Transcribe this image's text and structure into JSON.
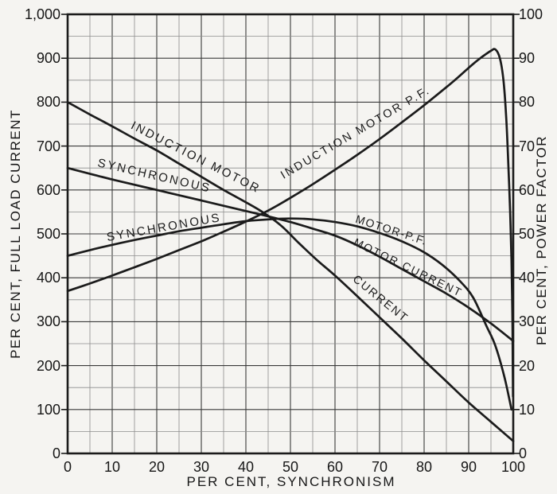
{
  "axes": {
    "x": {
      "title": "PER CENT, SYNCHRONISM",
      "ticks": [
        "0",
        "10",
        "20",
        "30",
        "40",
        "50",
        "60",
        "70",
        "80",
        "90",
        "100"
      ]
    },
    "left": {
      "title": "PER CENT, FULL LOAD CURRENT",
      "ticks": [
        "1,000",
        "900",
        "800",
        "700",
        "600",
        "500",
        "400",
        "300",
        "200",
        "100",
        "0"
      ]
    },
    "right": {
      "title": "PER CENT, POWER FACTOR",
      "ticks": [
        "100",
        "90",
        "80",
        "70",
        "60",
        "50",
        "40",
        "30",
        "20",
        "10",
        "0"
      ]
    }
  },
  "curve_labels": {
    "induction_motor": "INDUCTION MOTOR",
    "synchronous_upper": "SYNCHRONOUS",
    "synchronous_lower": "SYNCHRONOUS",
    "induction_motor_pf": "INDUCTION MOTOR P.F.",
    "motor_pf": "MOTOR-P.F.",
    "motor_current": "MOTOR CURRENT",
    "current": "CURRENT"
  },
  "chart_data": {
    "type": "line",
    "title": "",
    "x_axis": {
      "label": "PER CENT, SYNCHRONISM",
      "range": [
        0,
        100
      ],
      "major": 10,
      "minor": 5
    },
    "y_axis_left": {
      "label": "PER CENT, FULL LOAD CURRENT",
      "range": [
        0,
        1000
      ],
      "major": 100,
      "minor": 50
    },
    "y_axis_right": {
      "label": "PER CENT, POWER FACTOR",
      "range": [
        0,
        100
      ],
      "major": 10,
      "minor": 5
    },
    "grid": true,
    "legend": "labels drawn along curves",
    "ink_color": "#1b1b1b",
    "paper_color": "#f5f4f1",
    "series": [
      {
        "name": "induction_motor_current",
        "label_on_chart": "INDUCTION MOTOR ... CURRENT",
        "axis": "left",
        "points": [
          [
            0,
            800
          ],
          [
            5,
            772
          ],
          [
            10,
            745
          ],
          [
            15,
            717
          ],
          [
            20,
            690
          ],
          [
            25,
            660
          ],
          [
            30,
            630
          ],
          [
            35,
            600
          ],
          [
            40,
            572
          ],
          [
            44,
            548
          ],
          [
            48,
            518
          ],
          [
            52,
            478
          ],
          [
            56,
            440
          ],
          [
            60,
            405
          ],
          [
            65,
            358
          ],
          [
            70,
            310
          ],
          [
            75,
            262
          ],
          [
            80,
            212
          ],
          [
            85,
            164
          ],
          [
            90,
            116
          ],
          [
            95,
            72
          ],
          [
            100,
            28
          ]
        ]
      },
      {
        "name": "synchronous_motor_current",
        "label_on_chart": "SYNCHRONOUS ... MOTOR CURRENT",
        "axis": "left",
        "points": [
          [
            0,
            650
          ],
          [
            10,
            624
          ],
          [
            20,
            600
          ],
          [
            30,
            576
          ],
          [
            40,
            552
          ],
          [
            45,
            540
          ],
          [
            50,
            527
          ],
          [
            55,
            512
          ],
          [
            60,
            496
          ],
          [
            65,
            474
          ],
          [
            70,
            448
          ],
          [
            75,
            420
          ],
          [
            80,
            392
          ],
          [
            85,
            364
          ],
          [
            90,
            332
          ],
          [
            95,
            296
          ],
          [
            100,
            256
          ]
        ]
      },
      {
        "name": "synchronous_motor_pf",
        "label_on_chart": "SYNCHRONOUS ... MOTOR-P.F.",
        "axis": "right",
        "points": [
          [
            0,
            45
          ],
          [
            5,
            46.3
          ],
          [
            10,
            47.5
          ],
          [
            15,
            48.6
          ],
          [
            20,
            49.6
          ],
          [
            25,
            50.6
          ],
          [
            30,
            51.4
          ],
          [
            35,
            52.2
          ],
          [
            40,
            52.9
          ],
          [
            45,
            53.3
          ],
          [
            50,
            53.5
          ],
          [
            55,
            53.3
          ],
          [
            60,
            52.7
          ],
          [
            65,
            51.7
          ],
          [
            70,
            50.2
          ],
          [
            75,
            48.3
          ],
          [
            80,
            45.8
          ],
          [
            84,
            43
          ],
          [
            88,
            39.3
          ],
          [
            91,
            35.5
          ],
          [
            94,
            29
          ],
          [
            96,
            24.5
          ],
          [
            98,
            17.5
          ],
          [
            99.6,
            10
          ]
        ]
      },
      {
        "name": "induction_motor_pf",
        "label_on_chart": "INDUCTION MOTOR P.F.",
        "axis": "right",
        "points": [
          [
            0,
            37
          ],
          [
            5,
            38.7
          ],
          [
            10,
            40.5
          ],
          [
            15,
            42.4
          ],
          [
            20,
            44.3
          ],
          [
            25,
            46.3
          ],
          [
            30,
            48.3
          ],
          [
            35,
            50.5
          ],
          [
            40,
            52.8
          ],
          [
            45,
            55.3
          ],
          [
            50,
            58.2
          ],
          [
            55,
            61.3
          ],
          [
            60,
            64.6
          ],
          [
            65,
            68
          ],
          [
            70,
            71.6
          ],
          [
            75,
            75.4
          ],
          [
            80,
            79.3
          ],
          [
            85,
            83.4
          ],
          [
            88,
            86
          ],
          [
            91,
            88.7
          ],
          [
            93,
            90.3
          ],
          [
            95,
            91.7
          ],
          [
            96,
            92
          ],
          [
            97,
            90
          ],
          [
            97.8,
            85
          ],
          [
            98.4,
            77
          ],
          [
            98.9,
            66
          ],
          [
            99.3,
            55
          ],
          [
            99.6,
            44
          ],
          [
            99.8,
            32
          ],
          [
            99.9,
            20
          ],
          [
            99.95,
            13
          ]
        ]
      }
    ]
  }
}
